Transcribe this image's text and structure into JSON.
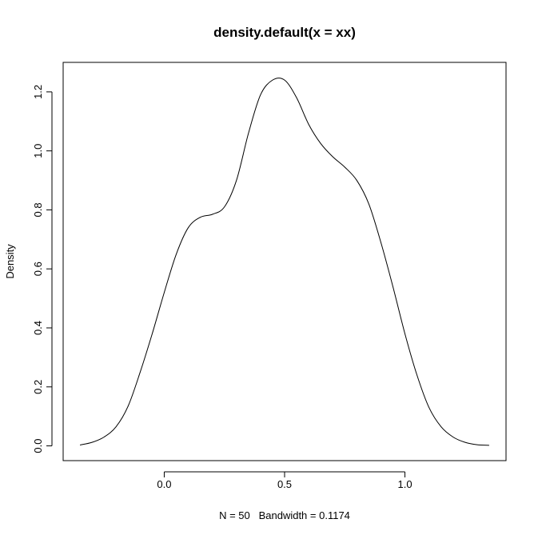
{
  "chart_data": {
    "type": "line",
    "title": "density.default(x = xx)",
    "xlabel": "N = 50   Bandwidth = 0.1174",
    "ylabel": "Density",
    "xlim": [
      -0.42,
      1.42
    ],
    "ylim": [
      -0.05,
      1.3
    ],
    "x_ticks": [
      {
        "value": 0.0,
        "label": "0.0"
      },
      {
        "value": 0.5,
        "label": "0.5"
      },
      {
        "value": 1.0,
        "label": "1.0"
      }
    ],
    "y_ticks": [
      {
        "value": 0.0,
        "label": "0.0"
      },
      {
        "value": 0.2,
        "label": "0.2"
      },
      {
        "value": 0.4,
        "label": "0.4"
      },
      {
        "value": 0.6,
        "label": "0.6"
      },
      {
        "value": 0.8,
        "label": "0.8"
      },
      {
        "value": 1.0,
        "label": "1.0"
      },
      {
        "value": 1.2,
        "label": "1.2"
      }
    ],
    "grid": false,
    "series": [
      {
        "x": [
          -0.35,
          -0.3,
          -0.25,
          -0.2,
          -0.15,
          -0.1,
          -0.05,
          0.0,
          0.05,
          0.1,
          0.15,
          0.2,
          0.25,
          0.3,
          0.35,
          0.4,
          0.45,
          0.5,
          0.55,
          0.6,
          0.65,
          0.7,
          0.75,
          0.8,
          0.85,
          0.9,
          0.95,
          1.0,
          1.05,
          1.1,
          1.15,
          1.2,
          1.25,
          1.3,
          1.35
        ],
        "y": [
          0.003,
          0.012,
          0.03,
          0.065,
          0.135,
          0.25,
          0.38,
          0.52,
          0.65,
          0.74,
          0.775,
          0.785,
          0.81,
          0.9,
          1.06,
          1.19,
          1.24,
          1.24,
          1.18,
          1.09,
          1.025,
          0.98,
          0.945,
          0.9,
          0.82,
          0.69,
          0.54,
          0.38,
          0.24,
          0.13,
          0.065,
          0.03,
          0.012,
          0.004,
          0.002
        ]
      }
    ]
  }
}
